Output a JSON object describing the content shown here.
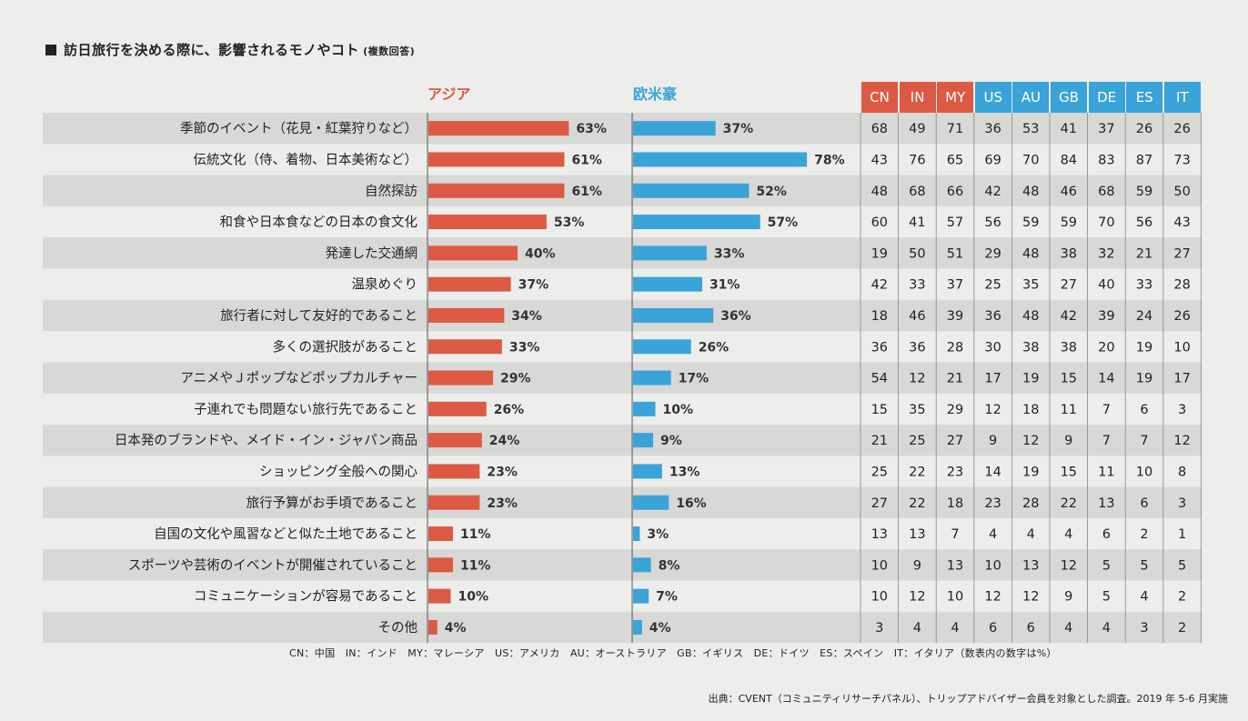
{
  "title": "訪日旅行を決める際に、影響されるモノやコト",
  "subtitle": "(複数回答)",
  "groups": {
    "asia": "アジア",
    "west": "欧米豪"
  },
  "colors": {
    "asia": "#dc5a44",
    "west": "#3aa3d8",
    "row_shade": "#d8d8d6"
  },
  "country_codes": [
    {
      "code": "CN",
      "color": "#dc5a44"
    },
    {
      "code": "IN",
      "color": "#dc5a44"
    },
    {
      "code": "MY",
      "color": "#dc5a44"
    },
    {
      "code": "US",
      "color": "#3aa3d8"
    },
    {
      "code": "AU",
      "color": "#3aa3d8"
    },
    {
      "code": "GB",
      "color": "#3aa3d8"
    },
    {
      "code": "DE",
      "color": "#3aa3d8"
    },
    {
      "code": "ES",
      "color": "#3aa3d8"
    },
    {
      "code": "IT",
      "color": "#3aa3d8"
    }
  ],
  "chart_data": {
    "type": "bar",
    "categories": [
      "季節のイベント（花見・紅葉狩りなど）",
      "伝統文化（侍、着物、日本美術など）",
      "自然探訪",
      "和食や日本食などの日本の食文化",
      "発達した交通網",
      "温泉めぐり",
      "旅行者に対して友好的であること",
      "多くの選択肢があること",
      "アニメやＪポップなどポップカルチャー",
      "子連れでも問題ない旅行先であること",
      "日本発のブランドや、メイド・イン・ジャパン商品",
      "ショッピング全般への関心",
      "旅行予算がお手頃であること",
      "自国の文化や風習などと似た土地であること",
      "スポーツや芸術のイベントが開催されていること",
      "コミュニケーションが容易であること",
      "その他"
    ],
    "series": [
      {
        "name": "アジア",
        "values": [
          63,
          61,
          61,
          53,
          40,
          37,
          34,
          33,
          29,
          26,
          24,
          23,
          23,
          11,
          11,
          10,
          4
        ]
      },
      {
        "name": "欧米豪",
        "values": [
          37,
          78,
          52,
          57,
          33,
          31,
          36,
          26,
          17,
          10,
          9,
          13,
          16,
          3,
          8,
          7,
          4
        ]
      }
    ],
    "unit": "%",
    "table": [
      [
        68,
        49,
        71,
        36,
        53,
        41,
        37,
        26,
        26
      ],
      [
        43,
        76,
        65,
        69,
        70,
        84,
        83,
        87,
        73
      ],
      [
        48,
        68,
        66,
        42,
        48,
        46,
        68,
        59,
        50
      ],
      [
        60,
        41,
        57,
        56,
        59,
        59,
        70,
        56,
        43
      ],
      [
        19,
        50,
        51,
        29,
        48,
        38,
        32,
        21,
        27
      ],
      [
        42,
        33,
        37,
        25,
        35,
        27,
        40,
        33,
        28
      ],
      [
        18,
        46,
        39,
        36,
        48,
        42,
        39,
        24,
        26
      ],
      [
        36,
        36,
        28,
        30,
        38,
        38,
        20,
        19,
        10
      ],
      [
        54,
        12,
        21,
        17,
        19,
        15,
        14,
        19,
        17
      ],
      [
        15,
        35,
        29,
        12,
        18,
        11,
        7,
        6,
        3
      ],
      [
        21,
        25,
        27,
        9,
        12,
        9,
        7,
        7,
        12
      ],
      [
        25,
        22,
        23,
        14,
        19,
        15,
        11,
        10,
        8
      ],
      [
        27,
        22,
        18,
        23,
        28,
        22,
        13,
        6,
        3
      ],
      [
        13,
        13,
        7,
        4,
        4,
        4,
        6,
        2,
        1
      ],
      [
        10,
        9,
        13,
        10,
        13,
        12,
        5,
        5,
        5
      ],
      [
        10,
        12,
        10,
        12,
        12,
        9,
        5,
        4,
        2
      ],
      [
        3,
        4,
        4,
        6,
        6,
        4,
        4,
        3,
        2
      ]
    ]
  },
  "footnote_codes": "CN：中国　IN：インド　MY：マレーシア　US：アメリカ　AU：オーストラリア　GB：イギリス　DE：ドイツ　ES：スペイン　IT：イタリア（数表内の数字は%）",
  "source": "出典：CVENT（コミュニティリサーチパネル）、トリップアドバイザー会員を対象とした調査。2019 年 5-6 月実施"
}
